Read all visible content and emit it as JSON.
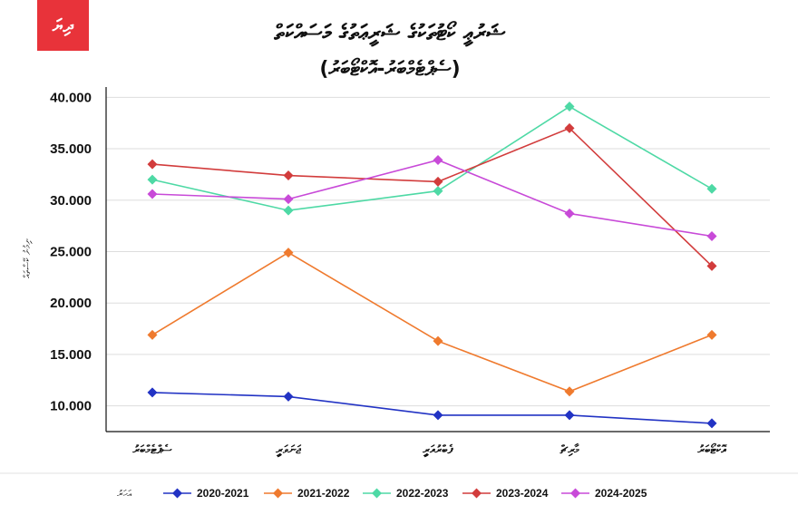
{
  "logo": {
    "text": "ދިޔަ",
    "color": "#e8333a"
  },
  "chart_data": {
    "type": "line",
    "title": "ޝަރުޢީ ކޯޓުތަކުގެ ޝަރީޢަތުގެ މަސައްކަތް",
    "subtitle": "(ސެޕްޓެމްބަރު-އޮކްޓޯބަރު)",
    "ylabel": "ނިމުނު ކޭސްތައް",
    "xlabel": "",
    "categories": [
      "ސެޕްޓެމްބަރު",
      "ޖަނަވަރީ",
      "ފެބްރުއަރީ",
      "މާރިޗް",
      "އޮކްޓޯބަރު"
    ],
    "ylim": [
      7500,
      41000
    ],
    "yticks": [
      10000,
      15000,
      20000,
      25000,
      30000,
      35000,
      40000
    ],
    "ytick_labels": [
      "10.000",
      "15.000",
      "20.000",
      "25.000",
      "30.000",
      "35.000",
      "40.000"
    ],
    "grid": true,
    "legend_title": "އަހަރު",
    "legend_position": "bottom",
    "series": [
      {
        "name": "2020-2021",
        "color": "#2233c4",
        "values": [
          11300,
          10900,
          9100,
          9100,
          8300
        ]
      },
      {
        "name": "2021-2022",
        "color": "#ef7a2e",
        "values": [
          16900,
          24900,
          16300,
          11400,
          16900
        ]
      },
      {
        "name": "2022-2023",
        "color": "#4ed9a5",
        "values": [
          32000,
          29000,
          30900,
          39100,
          31100
        ]
      },
      {
        "name": "2023-2024",
        "color": "#d23c3c",
        "values": [
          33500,
          32400,
          31800,
          37000,
          23600
        ]
      },
      {
        "name": "2024-2025",
        "color": "#c84ad8",
        "values": [
          30600,
          30100,
          33900,
          28700,
          26500
        ]
      }
    ]
  }
}
